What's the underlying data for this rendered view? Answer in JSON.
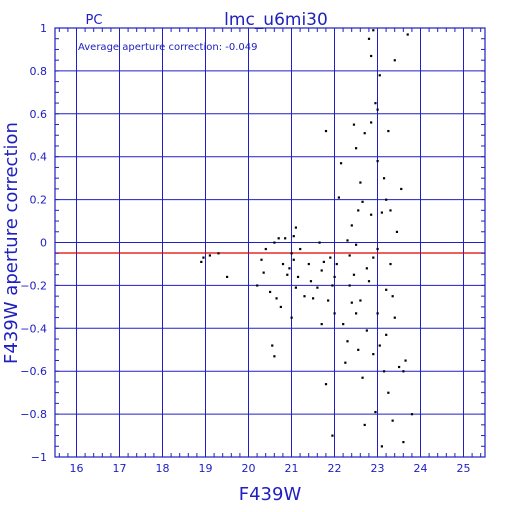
{
  "chart_data": {
    "type": "scatter",
    "title": "lmc_u6mi30",
    "label_pc": "PC",
    "annotation": "Average aperture correction: -0.049",
    "xlabel": "F439W",
    "ylabel": "F439W aperture correction",
    "xlim": [
      15.5,
      25.5
    ],
    "ylim": [
      -1,
      1
    ],
    "xticks": [
      16,
      17,
      18,
      19,
      20,
      21,
      22,
      23,
      24,
      25
    ],
    "yticks": [
      -1,
      -0.8,
      -0.6,
      -0.4,
      -0.2,
      0,
      0.2,
      0.4,
      0.6,
      0.8,
      1
    ],
    "ytick_labels": [
      "−1",
      "−0.8",
      "−0.6",
      "−0.4",
      "−0.2",
      "0",
      "0.2",
      "0.4",
      "0.6",
      "0.8",
      "1"
    ],
    "grid": true,
    "reference_line": {
      "y": -0.049,
      "color": "#e00000"
    },
    "colors": {
      "axis": "#2020c0",
      "grid": "#2020c0",
      "points": "#000000"
    },
    "points": [
      [
        18.9,
        -0.09
      ],
      [
        18.95,
        -0.07
      ],
      [
        19.1,
        -0.06
      ],
      [
        19.3,
        -0.05
      ],
      [
        19.5,
        -0.16
      ],
      [
        20.2,
        -0.2
      ],
      [
        20.3,
        -0.08
      ],
      [
        20.35,
        -0.14
      ],
      [
        20.4,
        -0.03
      ],
      [
        20.5,
        -0.23
      ],
      [
        20.55,
        -0.48
      ],
      [
        20.6,
        -0.53
      ],
      [
        20.6,
        0.0
      ],
      [
        20.65,
        -0.26
      ],
      [
        20.7,
        0.02
      ],
      [
        20.75,
        -0.3
      ],
      [
        20.8,
        -0.1
      ],
      [
        20.85,
        0.02
      ],
      [
        20.9,
        -0.15
      ],
      [
        20.95,
        -0.12
      ],
      [
        21.0,
        -0.05
      ],
      [
        21.05,
        0.03
      ],
      [
        21.0,
        -0.35
      ],
      [
        21.05,
        -0.08
      ],
      [
        21.1,
        0.07
      ],
      [
        21.1,
        -0.21
      ],
      [
        21.15,
        -0.16
      ],
      [
        21.2,
        -0.03
      ],
      [
        21.3,
        -0.25
      ],
      [
        21.4,
        -0.1
      ],
      [
        21.45,
        -0.18
      ],
      [
        21.5,
        -0.26
      ],
      [
        21.6,
        -0.21
      ],
      [
        21.65,
        0.0
      ],
      [
        21.7,
        -0.13
      ],
      [
        21.75,
        -0.09
      ],
      [
        21.7,
        -0.38
      ],
      [
        21.8,
        0.52
      ],
      [
        21.8,
        -0.66
      ],
      [
        21.85,
        -0.27
      ],
      [
        21.9,
        -0.07
      ],
      [
        21.95,
        -0.2
      ],
      [
        22.0,
        -0.16
      ],
      [
        21.95,
        -0.9
      ],
      [
        22.0,
        -0.33
      ],
      [
        22.05,
        -0.1
      ],
      [
        22.1,
        0.21
      ],
      [
        22.15,
        0.37
      ],
      [
        22.2,
        -0.38
      ],
      [
        22.25,
        -0.56
      ],
      [
        22.3,
        -0.46
      ],
      [
        22.3,
        0.01
      ],
      [
        22.35,
        -0.2
      ],
      [
        22.35,
        -0.06
      ],
      [
        22.4,
        0.08
      ],
      [
        22.4,
        -0.28
      ],
      [
        22.45,
        -0.15
      ],
      [
        22.45,
        0.55
      ],
      [
        22.5,
        -0.01
      ],
      [
        22.5,
        -0.33
      ],
      [
        22.55,
        0.15
      ],
      [
        22.55,
        -0.5
      ],
      [
        22.6,
        0.28
      ],
      [
        22.6,
        -0.27
      ],
      [
        22.65,
        0.19
      ],
      [
        22.65,
        -0.63
      ],
      [
        22.7,
        0.51
      ],
      [
        22.7,
        -0.85
      ],
      [
        22.75,
        -0.41
      ],
      [
        22.8,
        0.95
      ],
      [
        22.8,
        -0.18
      ],
      [
        22.85,
        0.56
      ],
      [
        22.85,
        0.13
      ],
      [
        22.9,
        -0.07
      ],
      [
        22.9,
        -0.52
      ],
      [
        22.95,
        0.65
      ],
      [
        22.95,
        -0.79
      ],
      [
        23.0,
        0.38
      ],
      [
        23.0,
        -0.33
      ],
      [
        23.05,
        0.78
      ],
      [
        23.05,
        -0.48
      ],
      [
        23.1,
        0.14
      ],
      [
        23.1,
        -0.95
      ],
      [
        23.15,
        0.3
      ],
      [
        23.15,
        -0.6
      ],
      [
        23.2,
        -0.22
      ],
      [
        23.2,
        -0.43
      ],
      [
        23.25,
        0.52
      ],
      [
        23.25,
        -0.7
      ],
      [
        23.3,
        0.15
      ],
      [
        23.3,
        -0.1
      ],
      [
        23.35,
        -0.25
      ],
      [
        23.35,
        -0.83
      ],
      [
        23.4,
        0.85
      ],
      [
        23.4,
        -0.35
      ],
      [
        23.45,
        0.05
      ],
      [
        23.5,
        -0.58
      ],
      [
        23.55,
        0.25
      ],
      [
        23.6,
        -0.6
      ],
      [
        23.6,
        -0.93
      ],
      [
        23.65,
        -0.55
      ],
      [
        23.7,
        0.97
      ],
      [
        23.8,
        -0.8
      ],
      [
        22.9,
        0.99
      ],
      [
        23.0,
        -0.03
      ],
      [
        22.85,
        0.87
      ],
      [
        22.5,
        0.44
      ],
      [
        23.2,
        0.2
      ],
      [
        23.0,
        0.62
      ],
      [
        22.75,
        -0.12
      ]
    ]
  }
}
